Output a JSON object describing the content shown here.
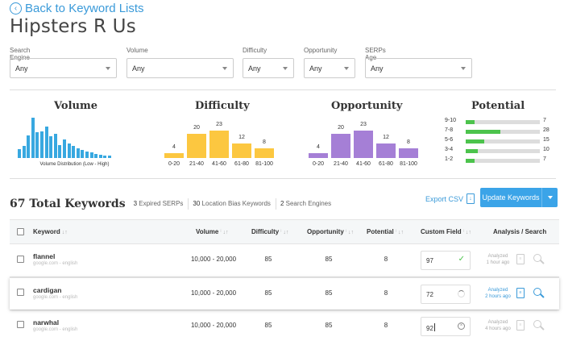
{
  "header": {
    "back_label": "Back to Keyword Lists",
    "title": "Hipsters R Us"
  },
  "filters": [
    {
      "label": "Search Engine",
      "value": "Any"
    },
    {
      "label": "Volume",
      "value": "Any"
    },
    {
      "label": "Difficulty",
      "value": "Any"
    },
    {
      "label": "Opportunity",
      "value": "Any"
    },
    {
      "label": "SERPs Age",
      "value": "Any"
    }
  ],
  "panels": {
    "volume_title": "Volume",
    "volume_caption": "Volume Distribution (Low - High)",
    "difficulty_title": "Difficulty",
    "opportunity_title": "Opportunity",
    "potential_title": "Potential"
  },
  "colors": {
    "accent": "#3a9ad9",
    "volume": "#38a8e0",
    "difficulty": "#fcc740",
    "opportunity": "#a57fd6",
    "potential": "#4cc34c"
  },
  "chart_data": [
    {
      "type": "bar",
      "title": "Volume",
      "xlabel": "Volume Distribution (Low - High)",
      "values": [
        11,
        14,
        27,
        48,
        31,
        32,
        37,
        26,
        29,
        15,
        22,
        17,
        14,
        12,
        10,
        8,
        7,
        5,
        4,
        3,
        3
      ]
    },
    {
      "type": "bar",
      "title": "Difficulty",
      "categories": [
        "0-20",
        "21-40",
        "41-60",
        "61-80",
        "81-100"
      ],
      "values": [
        4,
        20,
        23,
        12,
        8
      ]
    },
    {
      "type": "bar",
      "title": "Opportunity",
      "categories": [
        "0-20",
        "21-40",
        "41-60",
        "61-80",
        "81-100"
      ],
      "values": [
        4,
        20,
        23,
        12,
        8
      ]
    },
    {
      "type": "bar",
      "title": "Potential",
      "orientation": "horizontal",
      "categories": [
        "9-10",
        "7-8",
        "5-6",
        "3-4",
        "1-2"
      ],
      "values": [
        7,
        28,
        15,
        10,
        7
      ]
    }
  ],
  "summary": {
    "total": "67 Total Keywords",
    "expired_count": "3",
    "expired_label": "Expired SERPs",
    "bias_count": "30",
    "bias_label": "Location Bias Keywords",
    "engines_count": "2",
    "engines_label": "Search Engines"
  },
  "actions": {
    "export": "Export CSV",
    "update": "Update Keywords"
  },
  "table": {
    "columns": [
      "Keyword",
      "Volume",
      "Difficulty",
      "Opportunity",
      "Potential",
      "Custom Field",
      "Analysis / Search"
    ],
    "rows": [
      {
        "keyword": "flannel",
        "source": "google.com - english",
        "volume": "10,000 - 20,000",
        "difficulty": "85",
        "opportunity": "85",
        "potential": "8",
        "custom": "97",
        "analyzed": "Analyzed",
        "ago": "1 hour ago"
      },
      {
        "keyword": "cardigan",
        "source": "google.com - english",
        "volume": "10,000 - 20,000",
        "difficulty": "85",
        "opportunity": "85",
        "potential": "8",
        "custom": "72",
        "analyzed": "Analyzed",
        "ago": "2 hours ago"
      },
      {
        "keyword": "narwhal",
        "source": "google.com - english",
        "volume": "10,000 - 20,000",
        "difficulty": "85",
        "opportunity": "85",
        "potential": "8",
        "custom": "92",
        "analyzed": "Analyzed",
        "ago": "4 hours ago"
      }
    ]
  }
}
